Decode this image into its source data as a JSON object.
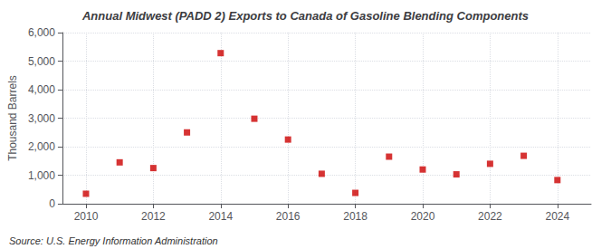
{
  "chart_data": {
    "type": "scatter",
    "title": "Annual Midwest (PADD 2) Exports to Canada of Gasoline Blending Components",
    "ylabel": "Thousand Barrels",
    "annotations": [
      "Source: U.S. Energy Information Administration"
    ],
    "x": [
      2010,
      2011,
      2012,
      2013,
      2014,
      2015,
      2016,
      2017,
      2018,
      2019,
      2020,
      2021,
      2022,
      2023,
      2024
    ],
    "values": [
      350,
      1450,
      1250,
      2500,
      5280,
      2980,
      2250,
      1050,
      380,
      1650,
      1200,
      1030,
      1400,
      1680,
      830
    ],
    "color": "#cc0000",
    "marker": "square",
    "xlim": [
      2009.3,
      2025
    ],
    "xticks": [
      2010,
      2012,
      2014,
      2016,
      2018,
      2020,
      2022,
      2024
    ],
    "ylim": [
      0,
      6000
    ],
    "yticks": [
      0,
      {
        "value": 1000,
        "label": "1,000"
      },
      {
        "value": 2000,
        "label": "2,000"
      },
      {
        "value": 3000,
        "label": "3,000"
      },
      {
        "value": 4000,
        "label": "4,000"
      },
      {
        "value": 5000,
        "label": "5,000"
      },
      {
        "value": 6000,
        "label": "6,000"
      }
    ],
    "grid": true
  }
}
